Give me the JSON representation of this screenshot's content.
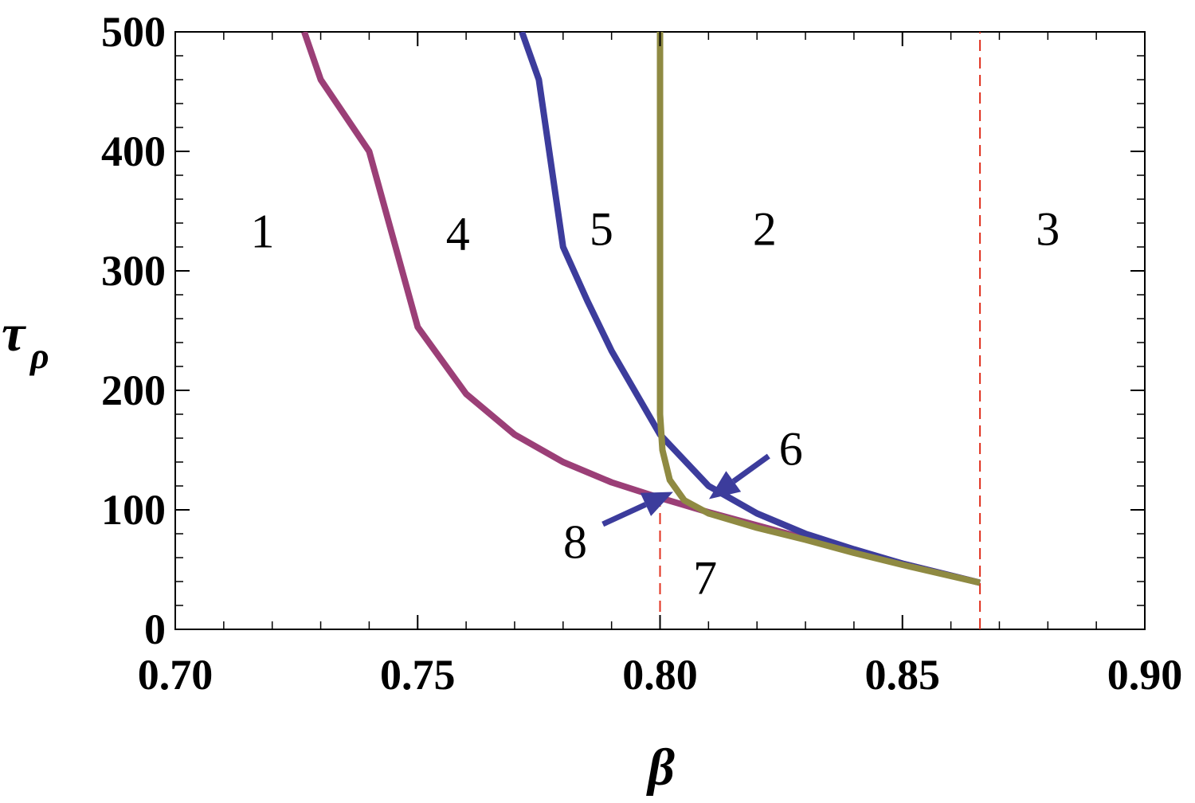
{
  "chart_data": {
    "type": "line",
    "xlabel": "β",
    "ylabel": "τ",
    "ylabel_sub": "ρ",
    "xlim": [
      0.7,
      0.9
    ],
    "ylim": [
      0,
      500
    ],
    "xticks": [
      {
        "value": 0.7,
        "label": "0.70"
      },
      {
        "value": 0.75,
        "label": "0.75"
      },
      {
        "value": 0.8,
        "label": "0.80"
      },
      {
        "value": 0.85,
        "label": "0.85"
      },
      {
        "value": 0.9,
        "label": "0.90"
      }
    ],
    "yticks": [
      0,
      100,
      200,
      300,
      400,
      500
    ],
    "series": [
      {
        "name": "curve-a",
        "color": "#9b3f77",
        "x": [
          0.7266,
          0.73,
          0.735,
          0.74,
          0.75,
          0.76,
          0.77,
          0.78,
          0.79,
          0.8,
          0.81,
          0.82,
          0.83,
          0.84,
          0.85,
          0.866
        ],
        "values": [
          500,
          460,
          430,
          400,
          253,
          197,
          163,
          140,
          123,
          110,
          98,
          87,
          76,
          66,
          55,
          39
        ]
      },
      {
        "name": "curve-b",
        "color": "#3c3c9c",
        "x": [
          0.7715,
          0.775,
          0.78,
          0.785,
          0.79,
          0.8,
          0.81,
          0.82,
          0.83,
          0.84,
          0.85,
          0.866
        ],
        "values": [
          500,
          460,
          320,
          275,
          233,
          163,
          120,
          97,
          80,
          67,
          55,
          39
        ]
      },
      {
        "name": "curve-c",
        "color": "#8f8a42",
        "x": [
          0.8,
          0.8,
          0.8005,
          0.802,
          0.805,
          0.81,
          0.82,
          0.83,
          0.84,
          0.85,
          0.866
        ],
        "values": [
          500,
          180,
          150,
          125,
          108,
          97,
          85,
          75,
          64,
          54,
          39
        ]
      }
    ],
    "dashed_lines": [
      {
        "color": "#e0301e",
        "x": 0.8,
        "ylim": [
          0,
          110
        ]
      },
      {
        "color": "#e0301e",
        "x": 0.866,
        "ylim": [
          0,
          500
        ]
      }
    ],
    "annotations": [
      {
        "text": "1",
        "x": 0.718,
        "y": 333
      },
      {
        "text": "4",
        "x": 0.7583,
        "y": 331
      },
      {
        "text": "5",
        "x": 0.7879,
        "y": 335
      },
      {
        "text": "2",
        "x": 0.8216,
        "y": 335
      },
      {
        "text": "3",
        "x": 0.88,
        "y": 335
      },
      {
        "text": "7",
        "x": 0.8093,
        "y": 43
      },
      {
        "text": "6",
        "x": 0.827,
        "y": 151
      },
      {
        "text": "8",
        "x": 0.7825,
        "y": 73
      }
    ],
    "arrows": [
      {
        "color": "#3c3c9c",
        "from": [
          0.8224,
          145
        ],
        "to": [
          0.8101,
          109
        ]
      },
      {
        "color": "#3c3c9c",
        "from": [
          0.7882,
          88
        ],
        "to": [
          0.8027,
          115
        ]
      }
    ]
  }
}
